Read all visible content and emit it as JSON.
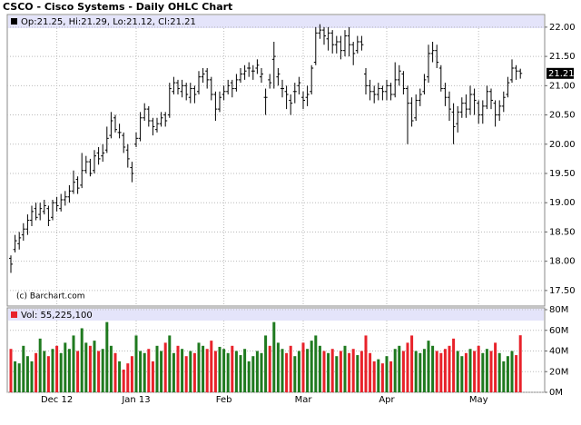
{
  "chart_data": {
    "type": "ohlc",
    "title": "CSCO - Cisco Systems - Daily OHLC Chart",
    "info": "Op:21.25, Hi:21.29, Lo:21.12, Cl:21.21",
    "credit": "(c) Barchart.com",
    "last_price": 21.21,
    "categories": [
      null,
      null,
      null,
      null,
      null,
      null,
      null,
      null,
      null,
      null,
      null,
      "Dec 12",
      null,
      null,
      null,
      null,
      null,
      null,
      null,
      null,
      null,
      null,
      null,
      null,
      null,
      null,
      null,
      null,
      null,
      null,
      "Jan 13",
      null,
      null,
      null,
      null,
      null,
      null,
      null,
      null,
      null,
      null,
      null,
      null,
      null,
      null,
      null,
      null,
      null,
      null,
      null,
      null,
      "Feb",
      null,
      null,
      null,
      null,
      null,
      null,
      null,
      null,
      null,
      null,
      null,
      null,
      null,
      null,
      null,
      null,
      null,
      null,
      "Mar",
      null,
      null,
      null,
      null,
      null,
      null,
      null,
      null,
      null,
      null,
      null,
      null,
      null,
      null,
      null,
      null,
      null,
      null,
      null,
      "Apr",
      null,
      null,
      null,
      null,
      null,
      null,
      null,
      null,
      null,
      null,
      null,
      null,
      null,
      null,
      null,
      null,
      null,
      null,
      null,
      null,
      null,
      "May",
      null,
      null,
      null,
      null,
      null,
      null,
      null,
      null,
      null,
      null
    ],
    "open": [
      18.05,
      18.2,
      18.3,
      18.45,
      18.55,
      18.7,
      18.9,
      18.8,
      18.85,
      18.9,
      18.75,
      19.0,
      18.9,
      19.05,
      19.1,
      19.2,
      19.4,
      19.3,
      19.55,
      19.7,
      19.55,
      19.85,
      19.8,
      19.9,
      20.15,
      20.45,
      20.2,
      20.15,
      19.9,
      19.6,
      20.0,
      20.1,
      20.45,
      20.6,
      20.4,
      20.25,
      20.35,
      20.5,
      20.5,
      20.9,
      21.05,
      20.9,
      21.0,
      20.8,
      20.95,
      20.9,
      21.15,
      21.25,
      21.1,
      20.85,
      20.6,
      20.85,
      20.9,
      21.05,
      20.95,
      21.1,
      21.2,
      21.3,
      21.25,
      21.3,
      21.15,
      20.8,
      21.1,
      21.45,
      21.15,
      20.95,
      20.9,
      20.75,
      20.9,
      21.0,
      20.8,
      20.8,
      20.9,
      21.4,
      21.9,
      21.95,
      21.8,
      21.9,
      21.7,
      21.75,
      21.6,
      21.85,
      21.7,
      21.6,
      21.75,
      21.2,
      21.0,
      20.9,
      20.85,
      20.95,
      20.9,
      21.0,
      20.85,
      21.1,
      21.2,
      20.95,
      20.7,
      20.45,
      20.75,
      20.9,
      21.15,
      21.55,
      21.6,
      21.3,
      20.95,
      20.8,
      20.55,
      20.35,
      20.55,
      20.7,
      20.6,
      20.85,
      20.7,
      20.5,
      20.65,
      20.9,
      20.7,
      20.5,
      20.65,
      20.85,
      21.1,
      21.3,
      21.25
    ],
    "high": [
      18.1,
      18.45,
      18.5,
      18.65,
      18.8,
      18.95,
      19.0,
      19.0,
      19.05,
      18.95,
      19.05,
      19.1,
      19.15,
      19.2,
      19.3,
      19.55,
      19.45,
      19.85,
      19.8,
      19.75,
      19.9,
      19.95,
      20.0,
      20.3,
      20.55,
      20.5,
      20.35,
      20.2,
      20.0,
      19.7,
      20.2,
      20.55,
      20.7,
      20.65,
      20.45,
      20.45,
      20.55,
      20.55,
      21.05,
      21.15,
      21.1,
      21.1,
      21.05,
      21.05,
      21.0,
      21.25,
      21.3,
      21.3,
      21.15,
      20.9,
      20.9,
      21.0,
      21.1,
      21.1,
      21.2,
      21.3,
      21.35,
      21.4,
      21.35,
      21.45,
      21.3,
      20.95,
      21.2,
      21.75,
      21.3,
      21.1,
      21.0,
      20.85,
      21.05,
      21.15,
      20.9,
      21.0,
      21.35,
      22.0,
      22.05,
      22.0,
      22.0,
      21.95,
      21.85,
      21.85,
      21.95,
      22.0,
      21.75,
      21.85,
      21.85,
      21.3,
      21.1,
      21.0,
      21.05,
      21.0,
      21.1,
      21.05,
      21.4,
      21.35,
      21.25,
      21.0,
      20.8,
      20.85,
      20.95,
      21.2,
      21.7,
      21.75,
      21.7,
      21.35,
      21.05,
      20.9,
      20.7,
      20.65,
      20.8,
      20.85,
      21.0,
      20.95,
      20.75,
      20.75,
      21.0,
      20.95,
      20.75,
      20.75,
      20.9,
      21.15,
      21.45,
      21.35,
      21.29
    ],
    "low": [
      17.8,
      18.15,
      18.2,
      18.35,
      18.45,
      18.6,
      18.7,
      18.7,
      18.8,
      18.6,
      18.7,
      18.85,
      18.85,
      18.95,
      19.0,
      19.15,
      19.15,
      19.25,
      19.5,
      19.45,
      19.5,
      19.65,
      19.7,
      19.85,
      20.1,
      20.2,
      20.1,
      19.85,
      19.6,
      19.35,
      19.95,
      20.05,
      20.4,
      20.3,
      20.15,
      20.2,
      20.3,
      20.3,
      20.45,
      20.85,
      20.85,
      20.8,
      20.75,
      20.7,
      20.7,
      20.85,
      21.05,
      20.95,
      20.75,
      20.4,
      20.55,
      20.75,
      20.85,
      20.8,
      20.9,
      21.05,
      21.1,
      21.15,
      21.1,
      21.2,
      21.05,
      20.5,
      20.95,
      20.95,
      21.0,
      20.8,
      20.6,
      20.5,
      20.7,
      20.85,
      20.6,
      20.65,
      20.85,
      21.35,
      21.8,
      21.7,
      21.6,
      21.55,
      21.55,
      21.45,
      21.5,
      21.5,
      21.35,
      21.55,
      21.6,
      20.85,
      20.75,
      20.7,
      20.75,
      20.75,
      20.75,
      20.75,
      20.8,
      21.0,
      20.85,
      20.0,
      20.3,
      20.4,
      20.65,
      20.85,
      21.05,
      21.4,
      21.3,
      20.9,
      20.65,
      20.4,
      20.0,
      20.2,
      20.45,
      20.45,
      20.5,
      20.5,
      20.35,
      20.35,
      20.6,
      20.6,
      20.3,
      20.4,
      20.55,
      20.8,
      21.05,
      21.1,
      21.12
    ],
    "close": [
      17.95,
      18.35,
      18.4,
      18.55,
      18.7,
      18.85,
      18.75,
      18.9,
      18.95,
      18.7,
      19.0,
      18.95,
      19.05,
      19.1,
      19.2,
      19.35,
      19.25,
      19.55,
      19.7,
      19.5,
      19.8,
      19.75,
      19.85,
      20.1,
      20.4,
      20.25,
      20.2,
      19.95,
      19.75,
      19.5,
      20.1,
      20.45,
      20.6,
      20.4,
      20.3,
      20.35,
      20.45,
      20.4,
      20.95,
      21.05,
      20.95,
      21.0,
      20.85,
      20.95,
      20.85,
      21.15,
      21.2,
      21.1,
      20.85,
      20.6,
      20.8,
      20.9,
      21.0,
      20.95,
      21.1,
      21.2,
      21.25,
      21.3,
      21.25,
      21.35,
      21.2,
      20.8,
      21.05,
      21.5,
      21.2,
      20.95,
      20.85,
      20.7,
      20.9,
      21.05,
      20.75,
      20.85,
      21.3,
      21.9,
      21.95,
      21.85,
      21.9,
      21.7,
      21.75,
      21.6,
      21.85,
      21.7,
      21.55,
      21.75,
      21.7,
      21.0,
      20.9,
      20.85,
      20.95,
      20.9,
      21.0,
      20.85,
      21.1,
      21.25,
      20.95,
      20.7,
      20.4,
      20.75,
      20.85,
      21.1,
      21.55,
      21.6,
      21.4,
      20.95,
      20.8,
      20.6,
      20.3,
      20.55,
      20.7,
      20.6,
      20.85,
      20.75,
      20.5,
      20.65,
      20.9,
      20.75,
      20.5,
      20.65,
      20.8,
      21.05,
      21.3,
      21.25,
      21.21
    ],
    "color": "#000000",
    "ylim": [
      17.25,
      22.2
    ],
    "yticks": [
      {
        "value": 17.5,
        "label": "17.50"
      },
      {
        "value": 18,
        "label": "18.00"
      },
      {
        "value": 18.5,
        "label": "18.50"
      },
      {
        "value": 19,
        "label": "19.00"
      },
      {
        "value": 19.5,
        "label": "19.50"
      },
      {
        "value": 20,
        "label": "20.00"
      },
      {
        "value": 20.5,
        "label": "20.50"
      },
      {
        "value": 21,
        "label": "21.00"
      },
      {
        "value": 21.5,
        "label": "21.50"
      },
      {
        "value": 22,
        "label": "22.00"
      }
    ],
    "grid": true,
    "volume": {
      "label": "Vol: 55,225,100",
      "values": [
        42,
        30,
        28,
        45,
        35,
        30,
        38,
        52,
        40,
        35,
        42,
        45,
        38,
        48,
        42,
        55,
        40,
        62,
        48,
        45,
        50,
        40,
        42,
        68,
        45,
        38,
        30,
        22,
        28,
        35,
        55,
        40,
        38,
        42,
        30,
        45,
        40,
        48,
        55,
        38,
        45,
        42,
        35,
        40,
        38,
        48,
        45,
        42,
        50,
        40,
        44,
        42,
        38,
        45,
        40,
        36,
        42,
        30,
        35,
        40,
        38,
        55,
        45,
        68,
        48,
        42,
        38,
        45,
        35,
        40,
        48,
        42,
        50,
        55,
        45,
        40,
        38,
        42,
        35,
        40,
        45,
        38,
        42,
        36,
        40,
        55,
        38,
        30,
        32,
        28,
        35,
        30,
        42,
        45,
        40,
        48,
        55,
        40,
        38,
        42,
        50,
        45,
        40,
        38,
        42,
        45,
        52,
        40,
        35,
        38,
        42,
        40,
        45,
        38,
        42,
        40,
        48,
        38,
        30,
        35,
        40,
        36,
        55.2251
      ],
      "up_color": "#1f7a1f",
      "down_color": "#e8222a",
      "ylim": [
        0,
        80
      ],
      "yticks": [
        {
          "value": 0,
          "label": "0M"
        },
        {
          "value": 20,
          "label": "20M"
        },
        {
          "value": 40,
          "label": "40M"
        },
        {
          "value": 60,
          "label": "60M"
        },
        {
          "value": 80,
          "label": "80M"
        }
      ]
    }
  }
}
